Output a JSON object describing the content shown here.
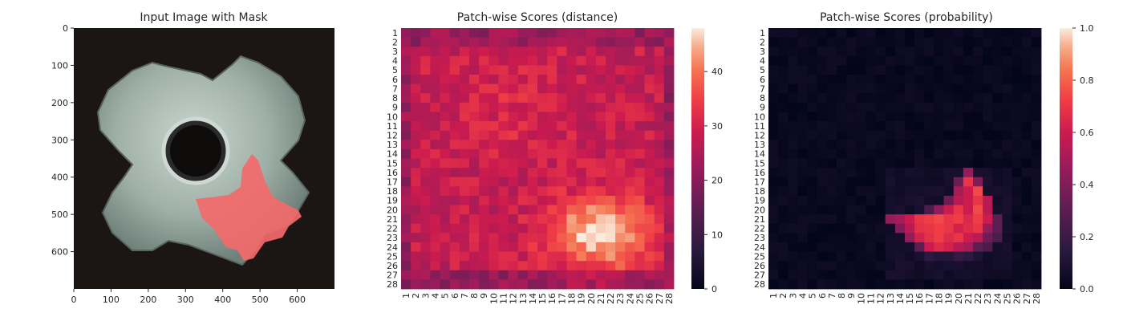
{
  "chart_data": [
    {
      "type": "image",
      "title": "Input Image with Mask",
      "xticks": [
        "0",
        "100",
        "200",
        "300",
        "400",
        "500",
        "600"
      ],
      "yticks": [
        "0",
        "100",
        "200",
        "300",
        "400",
        "500",
        "600"
      ],
      "xlim": [
        0,
        700
      ],
      "ylim": [
        0,
        700
      ],
      "mask_color": "#f26a6a",
      "background_color": "#1b1614",
      "part_color": "#a7b7b0"
    },
    {
      "type": "heatmap",
      "title": "Patch-wise Scores (distance)",
      "rows": 28,
      "cols": 28,
      "row_labels": [
        "1",
        "2",
        "3",
        "4",
        "5",
        "6",
        "7",
        "8",
        "9",
        "10",
        "11",
        "12",
        "13",
        "14",
        "15",
        "16",
        "17",
        "18",
        "19",
        "20",
        "21",
        "22",
        "23",
        "24",
        "25",
        "26",
        "27",
        "28"
      ],
      "col_labels": [
        "1",
        "2",
        "3",
        "4",
        "5",
        "6",
        "7",
        "8",
        "9",
        "10",
        "11",
        "12",
        "13",
        "14",
        "15",
        "16",
        "17",
        "18",
        "19",
        "20",
        "21",
        "22",
        "23",
        "24",
        "25",
        "26",
        "27",
        "28"
      ],
      "colorbar_ticks": [
        "0",
        "10",
        "20",
        "30",
        "40"
      ],
      "vmin": 0,
      "vmax": 48,
      "base_value": 28,
      "bright_region_peak": 48,
      "bright_region_center": {
        "row": 22.5,
        "col": 21.0
      },
      "colormap": "rocket"
    },
    {
      "type": "heatmap",
      "title": "Patch-wise Scores (probability)",
      "rows": 28,
      "cols": 28,
      "row_labels": [
        "1",
        "2",
        "3",
        "4",
        "5",
        "6",
        "7",
        "8",
        "9",
        "10",
        "11",
        "12",
        "13",
        "14",
        "15",
        "16",
        "17",
        "18",
        "19",
        "20",
        "21",
        "22",
        "23",
        "24",
        "25",
        "26",
        "27",
        "28"
      ],
      "col_labels": [
        "1",
        "2",
        "3",
        "4",
        "5",
        "6",
        "7",
        "8",
        "9",
        "10",
        "11",
        "12",
        "13",
        "14",
        "15",
        "16",
        "17",
        "18",
        "19",
        "20",
        "21",
        "22",
        "23",
        "24",
        "25",
        "26",
        "27",
        "28"
      ],
      "colorbar_ticks": [
        "0.0",
        "0.2",
        "0.4",
        "0.6",
        "0.8",
        "1.0"
      ],
      "vmin": 0,
      "vmax": 1,
      "hot_region": {
        "row_range": [
          16,
          27
        ],
        "col_range": [
          13,
          25
        ]
      },
      "colormap": "rocket"
    }
  ]
}
